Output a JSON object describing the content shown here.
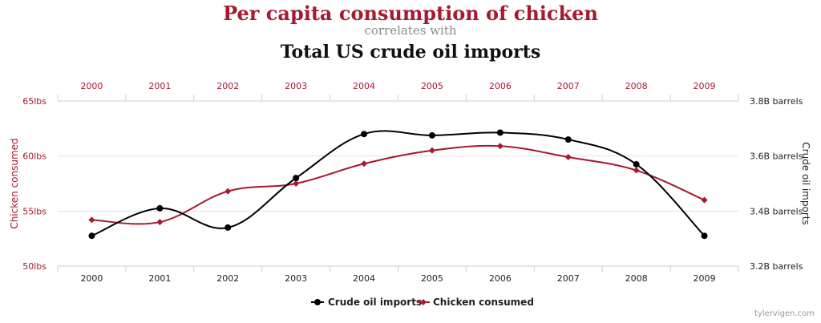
{
  "title": "Per capita consumption of chicken",
  "subtitle": "correlates with",
  "title2": "Total US crude oil imports",
  "credit": "tylervigen.com",
  "colors": {
    "oil": "#000000",
    "chicken": "#a6192e",
    "grid": "#dde3ea",
    "axis": "#c8d0da"
  },
  "chart_data": {
    "type": "line",
    "x": [
      "2000",
      "2001",
      "2002",
      "2003",
      "2004",
      "2005",
      "2006",
      "2007",
      "2008",
      "2009"
    ],
    "series": [
      {
        "name": "Crude oil imports",
        "axis": "right",
        "marker": "circle",
        "values": [
          3.31,
          3.41,
          3.34,
          3.52,
          3.68,
          3.675,
          3.685,
          3.66,
          3.57,
          3.31
        ]
      },
      {
        "name": "Chicken consumed",
        "axis": "left",
        "marker": "diamond",
        "values": [
          54.2,
          54.0,
          56.8,
          57.5,
          59.3,
          60.5,
          60.9,
          59.9,
          58.7,
          56.0
        ]
      }
    ],
    "left_axis": {
      "label": "Chicken consumed",
      "ylim": [
        50,
        65
      ],
      "ticks": [
        "50lbs",
        "55lbs",
        "60lbs",
        "65lbs"
      ]
    },
    "right_axis": {
      "label": "Crude oil imports",
      "ylim": [
        3.2,
        3.8
      ],
      "ticks": [
        "3.2B barrels",
        "3.4B barrels",
        "3.6B barrels",
        "3.8B barrels"
      ]
    },
    "grid": true,
    "legend": "bottom-center"
  }
}
